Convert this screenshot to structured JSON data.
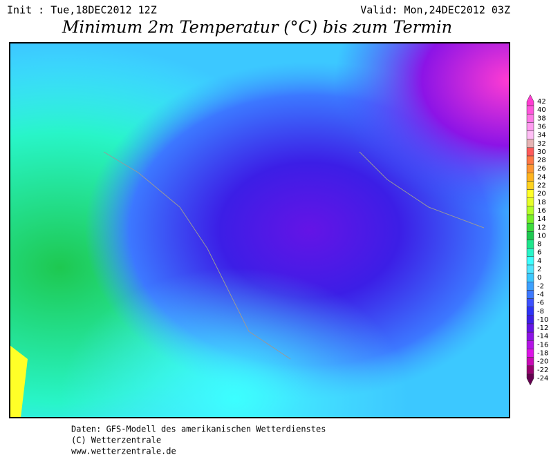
{
  "header": {
    "init": "Init : Tue,18DEC2012 12Z",
    "valid": "Valid: Mon,24DEC2012 03Z",
    "title": "Minimum 2m Temperatur (°C) bis zum Termin"
  },
  "legend": {
    "ticks": [
      42,
      40,
      38,
      36,
      34,
      32,
      30,
      28,
      26,
      24,
      22,
      20,
      18,
      16,
      14,
      12,
      10,
      8,
      6,
      4,
      2,
      0,
      -2,
      -4,
      -6,
      -8,
      -10,
      -12,
      -14,
      -16,
      -18,
      -20,
      -22,
      -24
    ],
    "colors": [
      "#ff3cd2",
      "#ff55dc",
      "#ff78e6",
      "#ff9bf0",
      "#ffbef5",
      "#e6b4b4",
      "#ff5a5a",
      "#ff7846",
      "#ff9632",
      "#ffb41e",
      "#ffd21e",
      "#ffff28",
      "#e6ff28",
      "#b4ff28",
      "#78f028",
      "#3cdc3c",
      "#1ec850",
      "#1ee68c",
      "#28f5c8",
      "#3cffff",
      "#50e6ff",
      "#3cc8ff",
      "#3ca0ff",
      "#3c78ff",
      "#3c50ff",
      "#2d32f5",
      "#3c1ee6",
      "#6414e6",
      "#8c14e6",
      "#b414e6",
      "#dc14e6",
      "#c80ab4",
      "#96006e",
      "#640050"
    ]
  },
  "footer": {
    "lines": [
      "Daten: GFS-Modell des amerikanischen Wetterdienstes",
      "(C) Wetterzentrale",
      "www.wetterzentrale.de"
    ]
  }
}
